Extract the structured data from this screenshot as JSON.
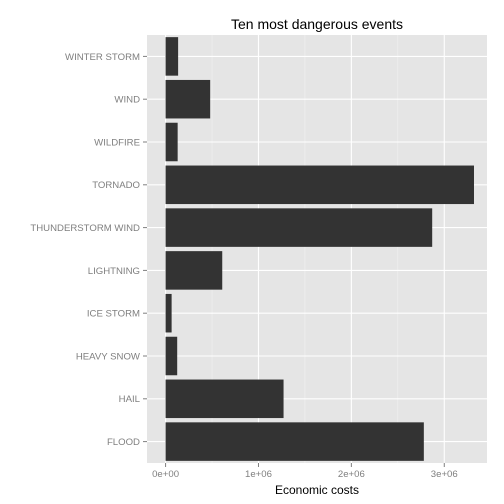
{
  "chart_data": {
    "type": "bar",
    "orientation": "horizontal",
    "title": "Ten most dangerous events",
    "xlabel": "Economic costs",
    "ylabel": "",
    "categories": [
      "FLOOD",
      "HAIL",
      "HEAVY SNOW",
      "ICE STORM",
      "LIGHTNING",
      "THUNDERSTORM WIND",
      "TORNADO",
      "WILDFIRE",
      "WIND",
      "WINTER STORM"
    ],
    "values": [
      2780000,
      1270000,
      125000,
      65000,
      610000,
      2870000,
      3320000,
      130000,
      480000,
      135000
    ],
    "xlim": [
      -200000,
      3460000
    ],
    "x_ticks": [
      0,
      1000000,
      2000000,
      3000000
    ],
    "x_tick_labels": [
      "0e+00",
      "1e+06",
      "2e+06",
      "3e+06"
    ],
    "grid": true,
    "colors": {
      "panel_background": "#e5e5e5",
      "grid_major": "#ffffff",
      "grid_minor": "#f2f2f2",
      "bar": "#333333",
      "tick_text": "#7f7f7f"
    }
  }
}
